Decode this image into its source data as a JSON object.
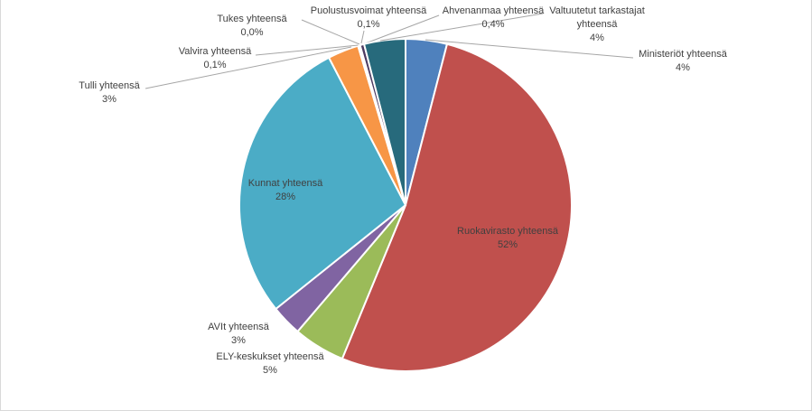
{
  "chart_data": {
    "type": "pie",
    "title": "",
    "slices": [
      {
        "label": "Ministeriöt yhteensä",
        "value": 4,
        "display": "4%",
        "color": "#4F81BD"
      },
      {
        "label": "Ruokavirasto yhteensä",
        "value": 52,
        "display": "52%",
        "color": "#C0504D"
      },
      {
        "label": "ELY-keskukset yhteensä",
        "value": 5,
        "display": "5%",
        "color": "#9BBB59"
      },
      {
        "label": "AVIt yhteensä",
        "value": 3,
        "display": "3%",
        "color": "#8064A2"
      },
      {
        "label": "Kunnat yhteensä",
        "value": 28,
        "display": "28%",
        "color": "#4BACC6"
      },
      {
        "label": "Tulli yhteensä",
        "value": 3,
        "display": "3%",
        "color": "#F79646"
      },
      {
        "label": "Valvira yhteensä",
        "value": 0.1,
        "display": "0,1%",
        "color": "#2C4D75"
      },
      {
        "label": "Tukes yhteensä",
        "value": 0.0,
        "display": "0,0%",
        "color": "#772C2A"
      },
      {
        "label": "Puolustusvoimat yhteensä",
        "value": 0.1,
        "display": "0,1%",
        "color": "#5F7530"
      },
      {
        "label": "Ahvenanmaa yhteensä",
        "value": 0.4,
        "display": "0,4%",
        "color": "#4D3B62"
      },
      {
        "label": "Valtuutetut tarkastajat yhteensä",
        "value": 4,
        "display": "4%",
        "color": "#276A7C"
      }
    ],
    "legend": "none",
    "start_angle": "top, clockwise"
  }
}
